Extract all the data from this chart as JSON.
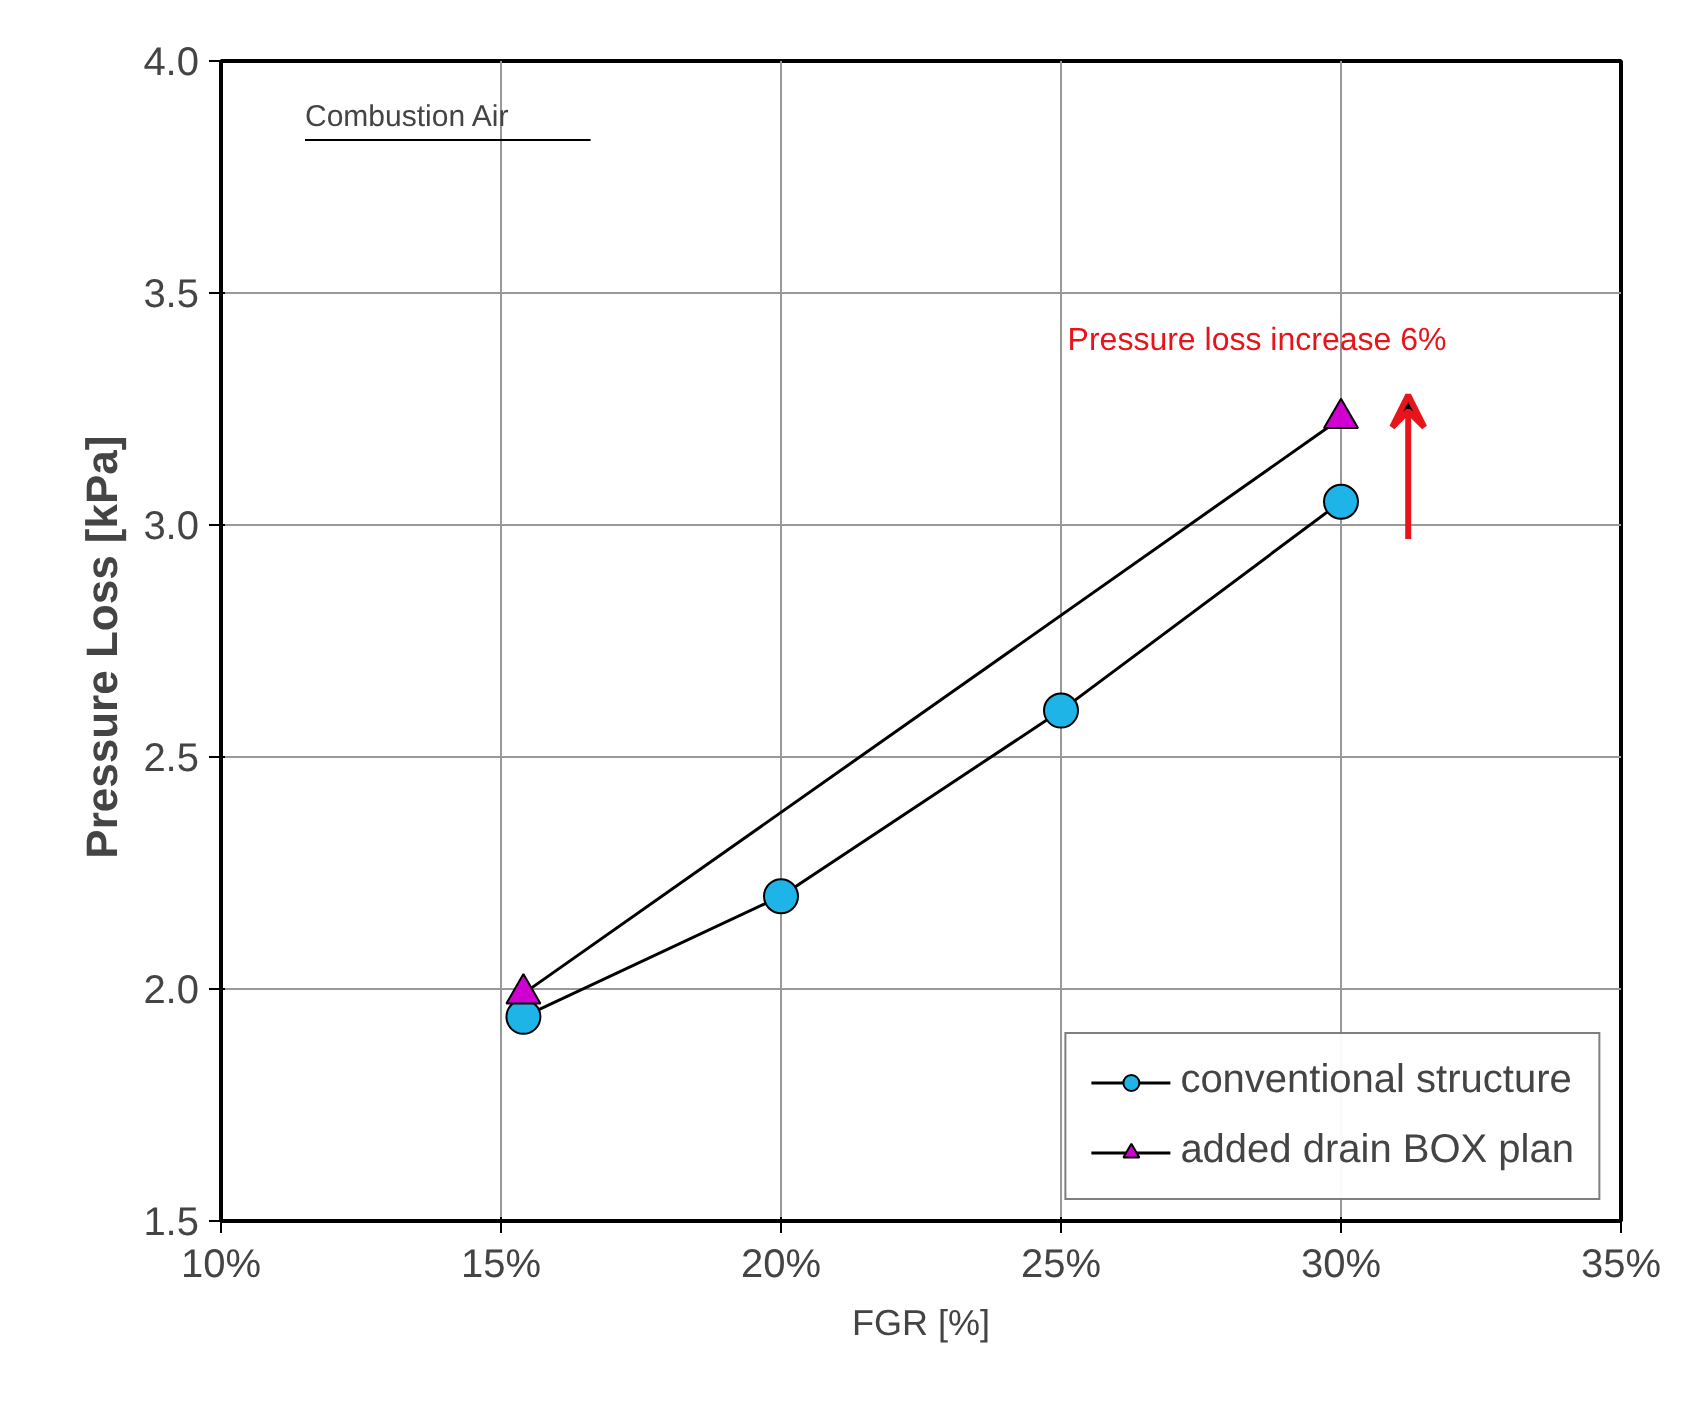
{
  "chart_data": {
    "type": "line",
    "xlabel": "FGR [%]",
    "ylabel": "Pressure Loss  [kPa]",
    "annotations": [
      "Combustion Air",
      "Pressure loss increase 6%"
    ],
    "xlim": [
      10,
      35
    ],
    "xticks": [
      {
        "value": 10,
        "label": "10%"
      },
      {
        "value": 15,
        "label": "15%"
      },
      {
        "value": 20,
        "label": "20%"
      },
      {
        "value": 25,
        "label": "25%"
      },
      {
        "value": 30,
        "label": "30%"
      },
      {
        "value": 35,
        "label": "35%"
      }
    ],
    "ylim": [
      1.5,
      4.0
    ],
    "yticks": [
      {
        "value": 1.5,
        "label": "1.5"
      },
      {
        "value": 2.0,
        "label": "2.0"
      },
      {
        "value": 2.5,
        "label": "2.5"
      },
      {
        "value": 3.0,
        "label": "3.0"
      },
      {
        "value": 3.5,
        "label": "3.5"
      },
      {
        "value": 4.0,
        "label": "4.0"
      }
    ],
    "grid": true,
    "legend": "bottom right",
    "series": [
      {
        "name": "conventional structure",
        "color": "#1fb4e8",
        "marker": "circle",
        "x": [
          15.4,
          20,
          25,
          30
        ],
        "values": [
          1.94,
          2.2,
          2.6,
          3.05
        ]
      },
      {
        "name": "added drain BOX plan",
        "color": "#d000d0",
        "marker": "triangle",
        "x": [
          15.4,
          30
        ],
        "values": [
          1.99,
          3.23
        ]
      }
    ]
  }
}
